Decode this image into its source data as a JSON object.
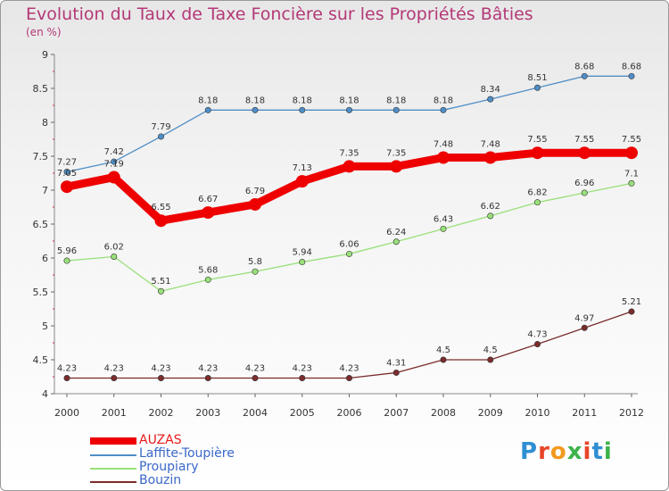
{
  "title": "Evolution du Taux de Taxe Foncière sur les Propriétés Bâties",
  "unit": "(en %)",
  "logo": "Proxiti",
  "chart_data": {
    "type": "line",
    "title": "Evolution du Taux de Taxe Foncière sur les Propriétés Bâties",
    "ylabel": "(en %)",
    "xlabel": "",
    "ylim": [
      4,
      9
    ],
    "yticks": [
      "4",
      "4.5",
      "5",
      "5.5",
      "6",
      "6.5",
      "7",
      "7.5",
      "8",
      "8.5",
      "9"
    ],
    "grid": false,
    "legend": "bottom-left",
    "x": [
      "2000",
      "2001",
      "2002",
      "2003",
      "2004",
      "2005",
      "2006",
      "2007",
      "2008",
      "2009",
      "2010",
      "2011",
      "2012"
    ],
    "series": [
      {
        "name": "Laffite-Toupière",
        "color": "#4f8ec6",
        "values": [
          7.27,
          7.42,
          7.79,
          8.18,
          8.18,
          8.18,
          8.18,
          8.18,
          8.18,
          8.34,
          8.51,
          8.68,
          8.68
        ]
      },
      {
        "name": "Proupiary",
        "color": "#99e07a",
        "values": [
          5.96,
          6.02,
          5.51,
          5.68,
          5.8,
          5.94,
          6.06,
          6.24,
          6.43,
          6.62,
          6.82,
          6.96,
          7.1
        ]
      },
      {
        "name": "Bouzin",
        "color": "#7b2c2c",
        "values": [
          4.23,
          4.23,
          4.23,
          4.23,
          4.23,
          4.23,
          4.23,
          4.31,
          4.5,
          4.5,
          4.73,
          4.97,
          5.21
        ]
      },
      {
        "name": "AUZAS",
        "color": "#ee0000",
        "values": [
          7.05,
          7.19,
          6.55,
          6.67,
          6.79,
          7.13,
          7.35,
          7.35,
          7.48,
          7.48,
          7.55,
          7.55,
          7.55
        ]
      }
    ]
  },
  "legend_items": [
    {
      "name": "AUZAS",
      "color": "#ee0000"
    },
    {
      "name": "Laffite-Toupière",
      "color": "#4f8ec6"
    },
    {
      "name": "Proupiary",
      "color": "#99e07a"
    },
    {
      "name": "Bouzin",
      "color": "#7b2c2c"
    }
  ]
}
